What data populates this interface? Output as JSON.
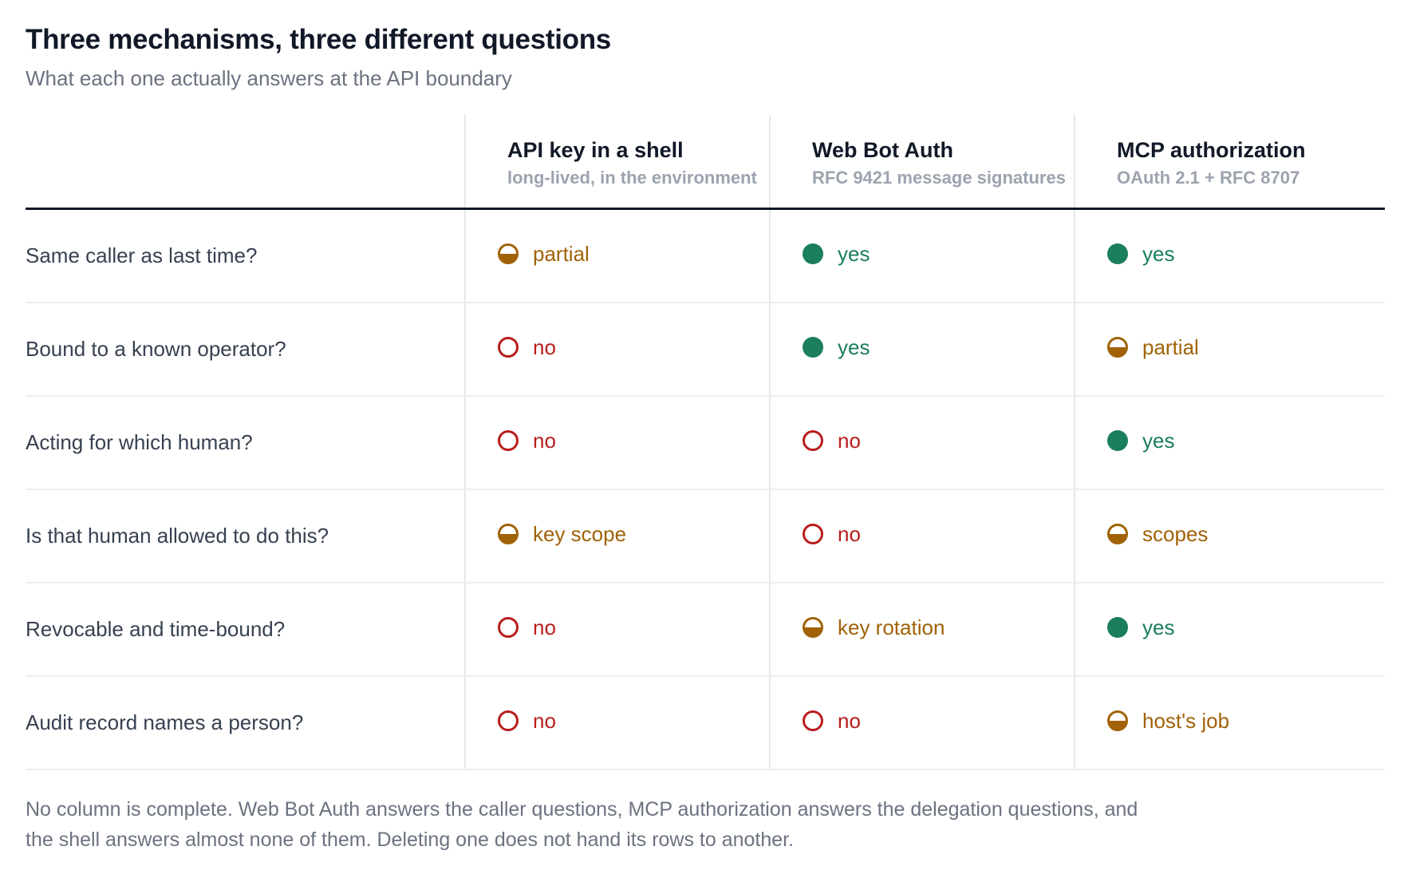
{
  "title": "Three mechanisms, three different questions",
  "subtitle": "What each one actually answers at the API boundary",
  "colors": {
    "yes": "#1a7f5a",
    "partial": "#a16207",
    "no": "#b91c1c"
  },
  "columns": [
    {
      "name": "API key in a shell",
      "sub": "long-lived, in the environment"
    },
    {
      "name": "Web Bot Auth",
      "sub": "RFC 9421 message signatures"
    },
    {
      "name": "MCP authorization",
      "sub": "OAuth 2.1 + RFC 8707"
    }
  ],
  "rows": [
    {
      "question": "Same caller as last time?",
      "cells": [
        {
          "status": "partial",
          "label": "partial",
          "icon": "half-filled-circle-icon"
        },
        {
          "status": "yes",
          "label": "yes",
          "icon": "filled-circle-icon"
        },
        {
          "status": "yes",
          "label": "yes",
          "icon": "filled-circle-icon"
        }
      ]
    },
    {
      "question": "Bound to a known operator?",
      "cells": [
        {
          "status": "no",
          "label": "no",
          "icon": "empty-circle-icon"
        },
        {
          "status": "yes",
          "label": "yes",
          "icon": "filled-circle-icon"
        },
        {
          "status": "partial",
          "label": "partial",
          "icon": "half-filled-circle-icon"
        }
      ]
    },
    {
      "question": "Acting for which human?",
      "cells": [
        {
          "status": "no",
          "label": "no",
          "icon": "empty-circle-icon"
        },
        {
          "status": "no",
          "label": "no",
          "icon": "empty-circle-icon"
        },
        {
          "status": "yes",
          "label": "yes",
          "icon": "filled-circle-icon"
        }
      ]
    },
    {
      "question": "Is that human allowed to do this?",
      "cells": [
        {
          "status": "partial",
          "label": "key scope",
          "icon": "half-filled-circle-icon"
        },
        {
          "status": "no",
          "label": "no",
          "icon": "empty-circle-icon"
        },
        {
          "status": "partial",
          "label": "scopes",
          "icon": "half-filled-circle-icon"
        }
      ]
    },
    {
      "question": "Revocable and time-bound?",
      "cells": [
        {
          "status": "no",
          "label": "no",
          "icon": "empty-circle-icon"
        },
        {
          "status": "partial",
          "label": "key rotation",
          "icon": "half-filled-circle-icon"
        },
        {
          "status": "yes",
          "label": "yes",
          "icon": "filled-circle-icon"
        }
      ]
    },
    {
      "question": "Audit record names a person?",
      "cells": [
        {
          "status": "no",
          "label": "no",
          "icon": "empty-circle-icon"
        },
        {
          "status": "no",
          "label": "no",
          "icon": "empty-circle-icon"
        },
        {
          "status": "partial",
          "label": "host's job",
          "icon": "half-filled-circle-icon"
        }
      ]
    }
  ],
  "footnote": "No column is complete. Web Bot Auth answers the caller questions, MCP authorization answers the delegation questions, and the shell answers almost none of them. Deleting one does not hand its rows to another."
}
